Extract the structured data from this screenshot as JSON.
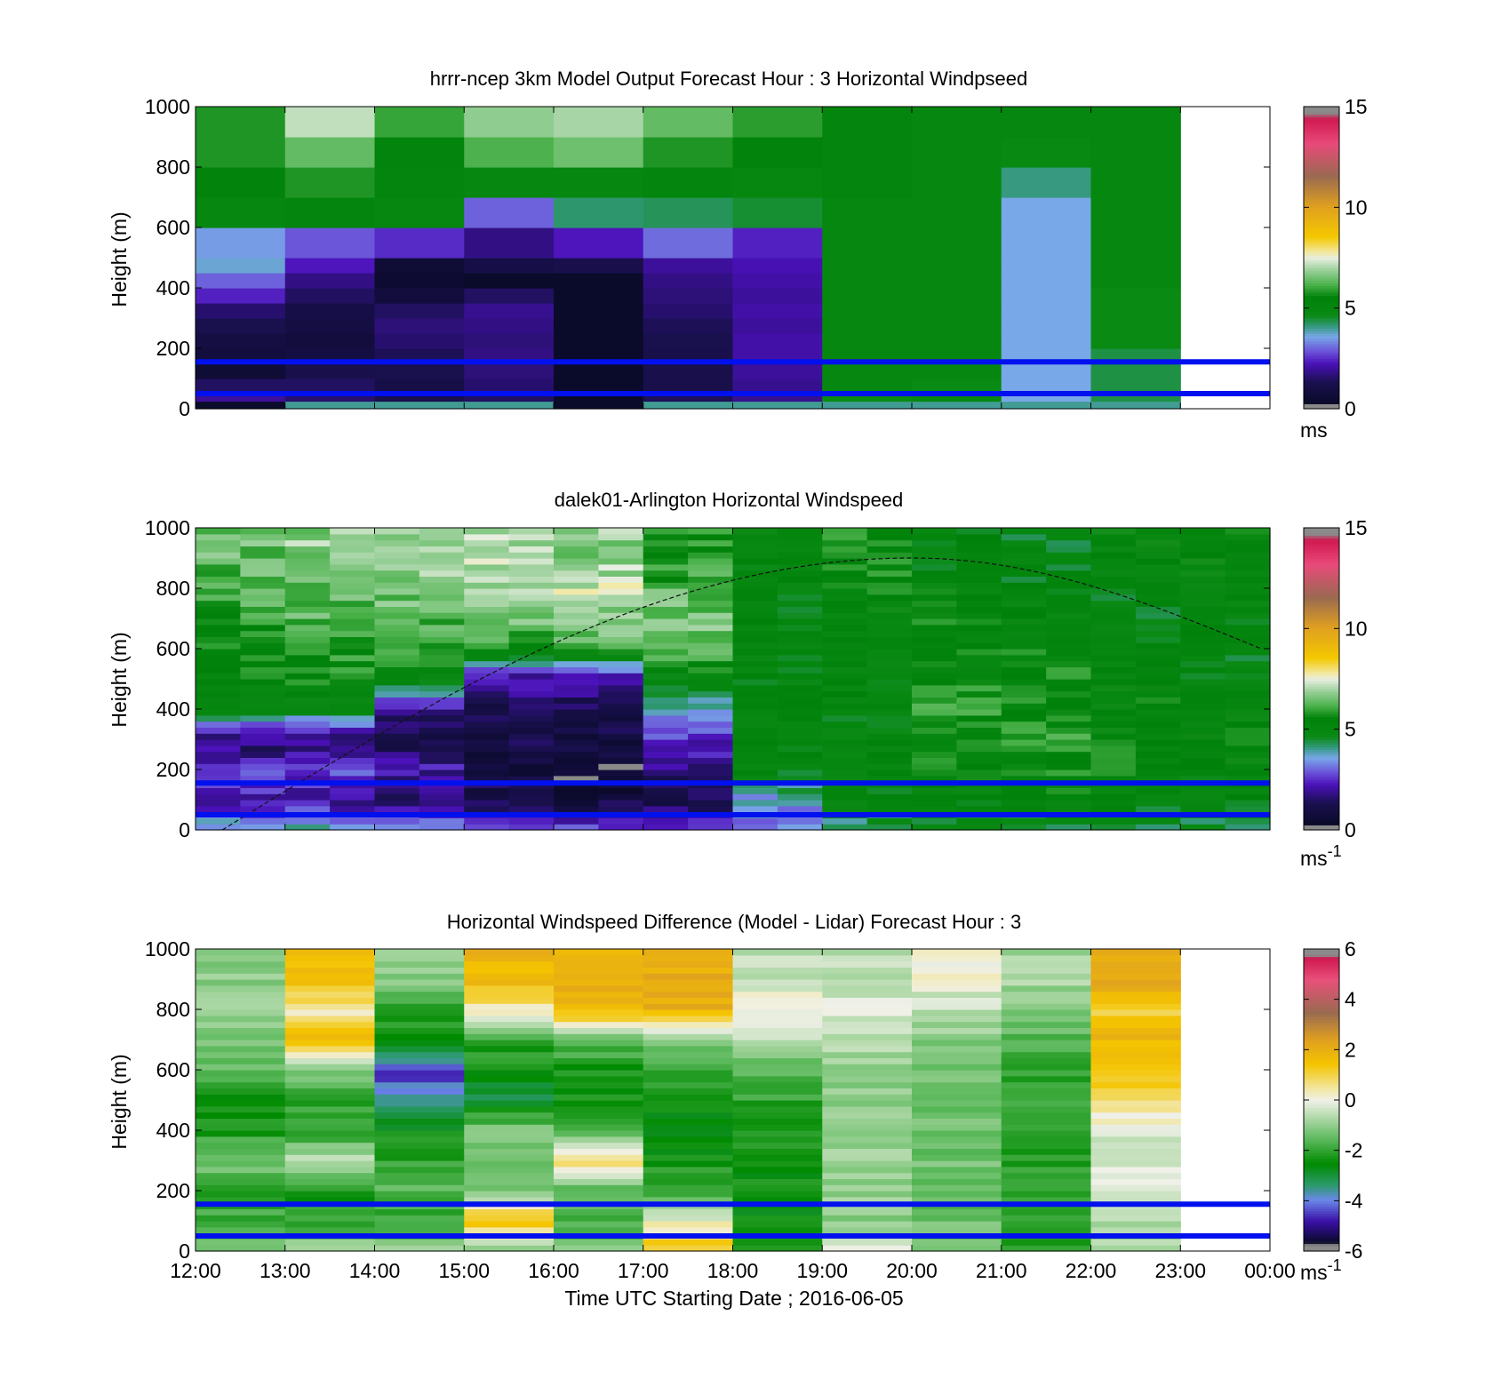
{
  "figure": {
    "xlabel": "Time UTC  Starting Date ; 2016-06-05",
    "time_ticks": [
      "12:00",
      "13:00",
      "14:00",
      "15:00",
      "16:00",
      "17:00",
      "18:00",
      "19:00",
      "20:00",
      "21:00",
      "22:00",
      "23:00",
      "00:00"
    ]
  },
  "chart_data": [
    {
      "type": "heatmap",
      "title": "hrrr-ncep 3km Model Output   Forecast Hour : 3 Horizontal Windpseed",
      "ylabel": "Height (m)",
      "ylim": [
        0,
        1000
      ],
      "yticks": [
        "0",
        "200",
        "400",
        "600",
        "800",
        "1000"
      ],
      "colorbar": {
        "min": 0,
        "max": 15,
        "ticks": [
          "0",
          "5",
          "10",
          "15"
        ],
        "unit": "ms",
        "unit_sup": ""
      },
      "reference_lines_m": [
        50,
        155
      ],
      "x_hours": [
        "12:00",
        "13:00",
        "14:00",
        "15:00",
        "16:00",
        "17:00",
        "18:00",
        "19:00",
        "20:00",
        "21:00",
        "22:00"
      ],
      "height_levels_m": [
        0,
        25,
        50,
        100,
        150,
        200,
        250,
        300,
        350,
        400,
        450,
        500,
        600,
        700,
        800,
        900
      ],
      "values": [
        [
          0.3,
          2.0,
          1.5,
          0.6,
          0.8,
          1.0,
          1.3,
          1.6,
          2.4,
          3.0,
          3.7,
          3.5,
          5.0,
          5.4,
          5.8,
          5.8
        ],
        [
          4.0,
          1.6,
          1.5,
          1.2,
          1.0,
          0.8,
          1.0,
          1.1,
          1.5,
          1.8,
          2.3,
          2.9,
          5.2,
          5.8,
          6.4,
          7.2
        ],
        [
          4.0,
          1.2,
          1.1,
          1.3,
          1.4,
          1.6,
          1.7,
          1.5,
          0.8,
          0.5,
          0.6,
          2.5,
          5.0,
          5.2,
          5.3,
          6.0
        ],
        [
          4.0,
          1.5,
          1.6,
          1.7,
          1.8,
          1.7,
          1.8,
          1.9,
          1.5,
          0.3,
          1.1,
          1.8,
          3.0,
          5.0,
          6.2,
          6.8
        ],
        [
          0.3,
          0.3,
          0.3,
          0.3,
          0.3,
          0.3,
          0.3,
          0.3,
          0.3,
          0.3,
          1.2,
          2.3,
          4.2,
          5.0,
          6.5,
          7.0
        ],
        [
          4.0,
          1.4,
          1.2,
          1.2,
          1.2,
          1.3,
          1.4,
          1.6,
          1.7,
          1.8,
          2.0,
          3.1,
          4.3,
          5.2,
          5.8,
          6.4
        ],
        [
          4.0,
          1.9,
          1.9,
          2.0,
          2.1,
          2.1,
          2.0,
          2.1,
          2.0,
          2.1,
          2.2,
          2.4,
          4.5,
          5.0,
          5.4,
          5.9
        ],
        [
          4.0,
          4.7,
          5.0,
          5.0,
          5.0,
          5.0,
          5.0,
          5.0,
          5.0,
          5.0,
          5.0,
          5.0,
          5.0,
          5.2,
          5.2,
          5.2
        ],
        [
          4.0,
          5.0,
          4.7,
          5.0,
          5.0,
          5.0,
          5.0,
          5.0,
          5.0,
          5.0,
          5.0,
          5.0,
          5.0,
          5.0,
          5.0,
          5.0
        ],
        [
          4.0,
          3.6,
          3.6,
          3.6,
          3.6,
          3.6,
          3.6,
          3.6,
          3.6,
          3.6,
          3.6,
          3.6,
          3.6,
          4.1,
          4.8,
          5.0
        ],
        [
          4.0,
          4.4,
          4.4,
          4.4,
          4.4,
          4.7,
          4.7,
          4.7,
          4.7,
          5.0,
          5.0,
          5.0,
          5.0,
          5.0,
          5.0,
          5.0
        ]
      ]
    },
    {
      "type": "heatmap",
      "title": "dalek01-Arlington  Horizontal Windspeed",
      "ylabel": "Height (m)",
      "ylim": [
        0,
        1000
      ],
      "yticks": [
        "0",
        "200",
        "400",
        "600",
        "800",
        "1000"
      ],
      "colorbar": {
        "min": 0,
        "max": 15,
        "ticks": [
          "0",
          "5",
          "10",
          "15"
        ],
        "unit": "ms",
        "unit_sup": "-1"
      },
      "reference_lines_m": [
        50,
        155
      ],
      "boundary_layer_curve": {
        "x_hours": [
          12.3,
          20.0,
          23.9
        ],
        "height_m": [
          0,
          900,
          600
        ]
      },
      "x_hours": [
        "12:00",
        "13:00",
        "14:00",
        "15:00",
        "16:00",
        "17:00",
        "18:00",
        "19:00",
        "20:00",
        "21:00",
        "22:00",
        "23:00"
      ],
      "height_levels_m": [
        0,
        100,
        200,
        300,
        400,
        500,
        600,
        700,
        800,
        900
      ],
      "values": [
        [
          4.0,
          2.2,
          2.6,
          1.6,
          5.0,
          5.4,
          5.6,
          6.0,
          6.2,
          6.4
        ],
        [
          3.8,
          2.0,
          2.9,
          1.6,
          4.8,
          5.5,
          5.8,
          6.2,
          6.4,
          6.8
        ],
        [
          3.5,
          1.6,
          2.2,
          1.2,
          1.8,
          5.2,
          5.8,
          6.3,
          6.7,
          7.0
        ],
        [
          3.0,
          1.2,
          1.0,
          1.0,
          1.4,
          2.0,
          5.8,
          6.5,
          6.9,
          7.1
        ],
        [
          2.8,
          0.8,
          0.6,
          0.9,
          1.1,
          2.2,
          6.0,
          6.8,
          7.3,
          6.8
        ],
        [
          2.8,
          1.2,
          1.8,
          2.5,
          3.9,
          5.0,
          6.2,
          6.6,
          6.2,
          5.8
        ],
        [
          3.2,
          3.6,
          5.0,
          5.0,
          5.0,
          5.0,
          5.0,
          5.0,
          5.0,
          5.2
        ],
        [
          4.0,
          5.0,
          5.2,
          5.0,
          5.0,
          5.0,
          5.2,
          5.3,
          5.5,
          5.6
        ],
        [
          4.5,
          5.0,
          5.5,
          5.4,
          5.8,
          5.5,
          5.3,
          5.6,
          5.2,
          5.0
        ],
        [
          4.5,
          5.2,
          5.6,
          5.8,
          5.5,
          5.6,
          5.4,
          5.2,
          5.0,
          4.8
        ],
        [
          4.6,
          5.0,
          5.4,
          5.5,
          5.3,
          5.2,
          5.0,
          4.8,
          5.0,
          5.2
        ],
        [
          4.4,
          5.0,
          5.2,
          5.4,
          5.2,
          5.0,
          4.8,
          5.0,
          5.2,
          5.3
        ]
      ]
    },
    {
      "type": "heatmap",
      "title": "Horizontal Windspeed Difference (Model - Lidar) Forecast Hour : 3",
      "ylabel": "Height (m)",
      "xlabel": "Time UTC  Starting Date ; 2016-06-05",
      "ylim": [
        0,
        1000
      ],
      "yticks": [
        "0",
        "200",
        "400",
        "600",
        "800",
        "1000"
      ],
      "colorbar": {
        "min": -6,
        "max": 6,
        "ticks": [
          "-6",
          "-4",
          "-2",
          "0",
          "2",
          "4",
          "6"
        ],
        "unit": "ms",
        "unit_sup": "-1"
      },
      "reference_lines_m": [
        50,
        155
      ],
      "x_hours": [
        "12:00",
        "13:00",
        "14:00",
        "15:00",
        "16:00",
        "17:00",
        "18:00",
        "19:00",
        "20:00",
        "21:00",
        "22:00"
      ],
      "height_levels_m": [
        0,
        100,
        200,
        300,
        400,
        500,
        600,
        700,
        800,
        900
      ],
      "values": [
        [
          -1.5,
          -1.8,
          -2.2,
          -1.2,
          -2.2,
          -2.4,
          -1.5,
          -1.2,
          -1.0,
          -1.0
        ],
        [
          -0.5,
          -2.0,
          -2.4,
          -0.3,
          -2.2,
          -2.0,
          -1.0,
          1.5,
          0.3,
          1.6
        ],
        [
          -1.0,
          -2.0,
          -1.6,
          -2.0,
          -2.4,
          -3.8,
          -4.5,
          -2.4,
          -2.0,
          -1.0
        ],
        [
          -1.4,
          1.6,
          -1.2,
          -1.5,
          -1.2,
          -3.0,
          -2.4,
          -2.0,
          0.3,
          1.8
        ],
        [
          -1.0,
          -1.8,
          -1.5,
          0.8,
          -2.0,
          -2.4,
          -2.3,
          -1.5,
          1.9,
          2.0
        ],
        [
          1.5,
          0.0,
          -1.8,
          -2.4,
          -2.6,
          -2.2,
          -1.8,
          -1.2,
          1.9,
          2.0
        ],
        [
          -2.0,
          -2.5,
          -2.4,
          -2.3,
          -2.4,
          -2.0,
          -1.5,
          -0.5,
          0.3,
          -0.5
        ],
        [
          -0.3,
          -1.0,
          -1.0,
          -1.0,
          -1.0,
          -1.0,
          -1.0,
          -0.5,
          -0.3,
          -0.5
        ],
        [
          -1.2,
          -1.4,
          -1.4,
          -1.3,
          -1.3,
          -1.4,
          -1.3,
          -1.2,
          -0.5,
          0.0
        ],
        [
          -2.0,
          -2.2,
          -2.0,
          -2.0,
          -2.2,
          -2.0,
          -2.0,
          -1.6,
          -1.2,
          -0.8
        ],
        [
          -0.8,
          -0.6,
          -0.4,
          -0.2,
          -0.2,
          0.6,
          1.6,
          1.8,
          1.2,
          2.2
        ]
      ]
    }
  ]
}
